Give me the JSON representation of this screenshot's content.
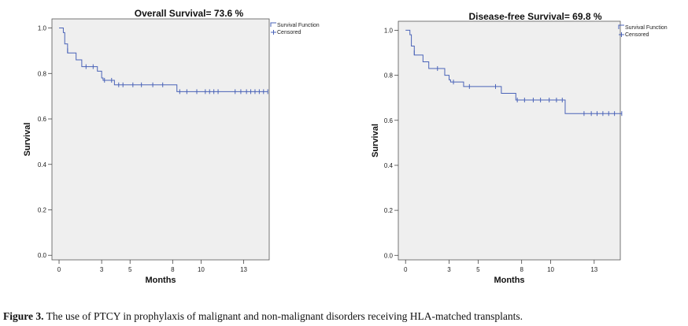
{
  "chart_data": [
    {
      "type": "line",
      "title": "Overall Survival= 73.6 %",
      "xlabel": "Months",
      "ylabel": "Survival",
      "xlim": [
        -0.5,
        14.8
      ],
      "ylim": [
        -0.02,
        1.04
      ],
      "x_ticks": [
        0,
        3,
        5,
        8,
        10,
        13
      ],
      "y_ticks": [
        0.0,
        0.2,
        0.4,
        0.6,
        0.8,
        1.0
      ],
      "y_tick_labels": [
        "0.0",
        "0.2",
        "0.4",
        "0.6",
        "0.8",
        "1.0"
      ],
      "legend": {
        "position": "top-right",
        "entries": [
          "Survival Function",
          "Censored"
        ]
      },
      "grid": false,
      "colors": {
        "line": "#4a63b8",
        "plot_bg": "#efefef"
      },
      "series": [
        {
          "name": "Survival Function",
          "steps": [
            [
              0,
              1.0
            ],
            [
              0.3,
              0.98
            ],
            [
              0.4,
              0.93
            ],
            [
              0.6,
              0.89
            ],
            [
              1.2,
              0.86
            ],
            [
              1.6,
              0.83
            ],
            [
              2.7,
              0.81
            ],
            [
              3.0,
              0.78
            ],
            [
              3.1,
              0.77
            ],
            [
              3.9,
              0.75
            ],
            [
              8.3,
              0.72
            ],
            [
              14.7,
              0.72
            ]
          ]
        },
        {
          "name": "Censored",
          "points": [
            [
              0.6,
              0.9
            ],
            [
              1.9,
              0.83
            ],
            [
              2.4,
              0.83
            ],
            [
              3.2,
              0.77
            ],
            [
              3.7,
              0.77
            ],
            [
              4.2,
              0.75
            ],
            [
              4.5,
              0.75
            ],
            [
              5.2,
              0.75
            ],
            [
              5.8,
              0.75
            ],
            [
              6.6,
              0.75
            ],
            [
              7.3,
              0.75
            ],
            [
              8.5,
              0.72
            ],
            [
              9.0,
              0.72
            ],
            [
              9.7,
              0.72
            ],
            [
              10.3,
              0.72
            ],
            [
              10.6,
              0.72
            ],
            [
              10.9,
              0.72
            ],
            [
              11.2,
              0.72
            ],
            [
              12.4,
              0.72
            ],
            [
              12.8,
              0.72
            ],
            [
              13.2,
              0.72
            ],
            [
              13.5,
              0.72
            ],
            [
              13.8,
              0.72
            ],
            [
              14.1,
              0.72
            ],
            [
              14.4,
              0.72
            ],
            [
              14.7,
              0.72
            ]
          ]
        }
      ]
    },
    {
      "type": "line",
      "title": "Disease-free Survival= 69.8 %",
      "xlabel": "Months",
      "ylabel": "Survival",
      "xlim": [
        -0.5,
        14.8
      ],
      "ylim": [
        -0.02,
        1.04
      ],
      "x_ticks": [
        0,
        3,
        5,
        8,
        10,
        13
      ],
      "y_ticks": [
        0.0,
        0.2,
        0.4,
        0.6,
        0.8,
        1.0
      ],
      "y_tick_labels": [
        "0.0",
        "0.2",
        "0.4",
        "0.6",
        "0.8",
        "1.0"
      ],
      "legend": {
        "position": "top-right",
        "entries": [
          "Survival Function",
          "Censored"
        ]
      },
      "grid": false,
      "colors": {
        "line": "#4a63b8",
        "plot_bg": "#efefef"
      },
      "series": [
        {
          "name": "Survival Function",
          "steps": [
            [
              0,
              1.0
            ],
            [
              0.3,
              0.98
            ],
            [
              0.4,
              0.93
            ],
            [
              0.6,
              0.89
            ],
            [
              1.2,
              0.86
            ],
            [
              1.6,
              0.83
            ],
            [
              2.7,
              0.8
            ],
            [
              3.0,
              0.78
            ],
            [
              3.1,
              0.77
            ],
            [
              4.0,
              0.75
            ],
            [
              6.6,
              0.72
            ],
            [
              7.6,
              0.69
            ],
            [
              11.0,
              0.63
            ],
            [
              14.9,
              0.63
            ]
          ]
        },
        {
          "name": "Censored",
          "points": [
            [
              0.6,
              0.9
            ],
            [
              2.2,
              0.83
            ],
            [
              3.3,
              0.77
            ],
            [
              4.4,
              0.75
            ],
            [
              6.2,
              0.75
            ],
            [
              7.7,
              0.69
            ],
            [
              8.2,
              0.69
            ],
            [
              8.8,
              0.69
            ],
            [
              9.3,
              0.69
            ],
            [
              9.9,
              0.69
            ],
            [
              10.4,
              0.69
            ],
            [
              10.8,
              0.69
            ],
            [
              12.3,
              0.63
            ],
            [
              12.8,
              0.63
            ],
            [
              13.2,
              0.63
            ],
            [
              13.6,
              0.63
            ],
            [
              14.0,
              0.63
            ],
            [
              14.4,
              0.63
            ],
            [
              14.9,
              0.63
            ]
          ]
        }
      ]
    }
  ],
  "caption": {
    "label": "Figure 3.",
    "text": " The use of PTCY in prophylaxis of malignant and non-malignant disorders receiving HLA-matched transplants."
  }
}
